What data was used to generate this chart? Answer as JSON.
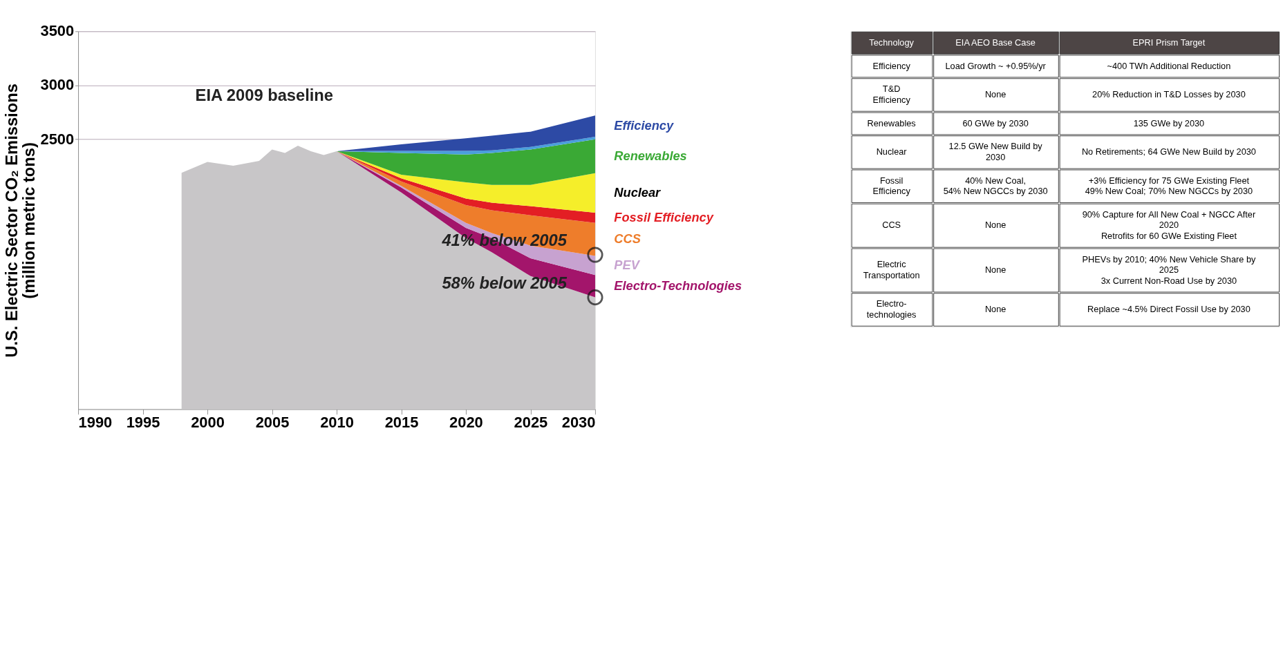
{
  "chart_data": {
    "type": "area",
    "stacked": true,
    "ylabel": "U.S. Electric Sector CO₂ Emissions\n(million metric tons)",
    "x": [
      1998,
      2000,
      2002,
      2004,
      2005,
      2006,
      2007,
      2008,
      2009,
      2010,
      2015,
      2020,
      2022,
      2025,
      2030
    ],
    "xlim": [
      1990,
      2030
    ],
    "xticks": [
      1990,
      1995,
      2000,
      2005,
      2010,
      2015,
      2020,
      2025,
      2030
    ],
    "ylim": [
      0,
      3500
    ],
    "yticks": [
      2500,
      3000,
      3500
    ],
    "grid": "y",
    "legend": false,
    "series": [
      {
        "color": "#c8c6c8",
        "values": [
          2190,
          2290,
          2255,
          2300,
          2405,
          2373,
          2440,
          2390,
          2355,
          2390,
          2007,
          1585,
          1454,
          1233,
          1036
        ]
      },
      {
        "name": "Electro-Technologies",
        "color": "#a3156b",
        "values": [
          0,
          0,
          0,
          0,
          0,
          0,
          0,
          0,
          0,
          0,
          47,
          94,
          131,
          165,
          207
        ]
      },
      {
        "name": "PEV",
        "color": "#c7a2d0",
        "values": [
          0,
          0,
          0,
          0,
          0,
          0,
          0,
          0,
          0,
          0,
          14,
          47,
          47,
          117,
          178
        ]
      },
      {
        "name": "CCS",
        "color": "#ee7d2b",
        "values": [
          0,
          0,
          0,
          0,
          0,
          0,
          0,
          0,
          0,
          0,
          42,
          164,
          211,
          281,
          305
        ]
      },
      {
        "name": "Fossil Efficiency",
        "color": "#e31e24",
        "values": [
          0,
          0,
          0,
          0,
          0,
          0,
          0,
          0,
          0,
          0,
          29,
          61,
          70,
          85,
          94
        ]
      },
      {
        "name": "Nuclear",
        "color": "#f5ee2a",
        "values": [
          0,
          0,
          0,
          0,
          0,
          0,
          0,
          0,
          0,
          0,
          33,
          150,
          165,
          197,
          366
        ]
      },
      {
        "name": "Renewables",
        "color": "#3aa935",
        "values": [
          0,
          0,
          0,
          0,
          0,
          0,
          0,
          0,
          0,
          0,
          201,
          258,
          295,
          328,
          314
        ]
      },
      {
        "color": "#4a9fdc",
        "values": [
          0,
          0,
          0,
          0,
          0,
          0,
          0,
          0,
          0,
          0,
          19,
          33,
          24,
          23,
          23
        ]
      },
      {
        "name": "Efficiency",
        "color": "#2d4aa5",
        "values": [
          0,
          0,
          0,
          0,
          0,
          0,
          0,
          0,
          0,
          0,
          61,
          117,
          136,
          141,
          197
        ]
      }
    ],
    "annotations": [
      "EIA 2009 baseline",
      {
        "text": "41% below 2005",
        "x": 2030,
        "y": 1430
      },
      {
        "text": "58% below 2005",
        "x": 2030,
        "y": 1036
      },
      "Technology",
      "EIA AEO Base Case",
      "EPRI Prism Target",
      "Efficiency",
      "Load Growth ~ +0.95%/yr",
      "~400 TWh Additional Reduction",
      "T&D\nEfficiency",
      "None",
      "20% Reduction in T&D Losses by 2030",
      "Renewables",
      "60 GWe by 2030",
      "135 GWe by 2030",
      "Nuclear",
      "12.5 GWe New Build by\n2030",
      "No Retirements; 64 GWe New Build by 2030",
      "Fossil\nEfficiency",
      "40% New Coal,\n54% New NGCCs by 2030",
      "+3% Efficiency for 75 GWe Existing Fleet\n49% New Coal; 70% New NGCCs by 2030",
      "CCS",
      "None",
      "90% Capture for All New Coal + NGCC After\n2020\nRetrofits for 60 GWe Existing Fleet",
      "Electric\nTransportation",
      "None",
      "PHEVs by 2010; 40% New Vehicle Share by\n2025\n3x Current Non-Road Use by 2030",
      "Electro-\ntechnologies",
      "None",
      "Replace ~4.5% Direct Fossil Use by 2030"
    ]
  }
}
